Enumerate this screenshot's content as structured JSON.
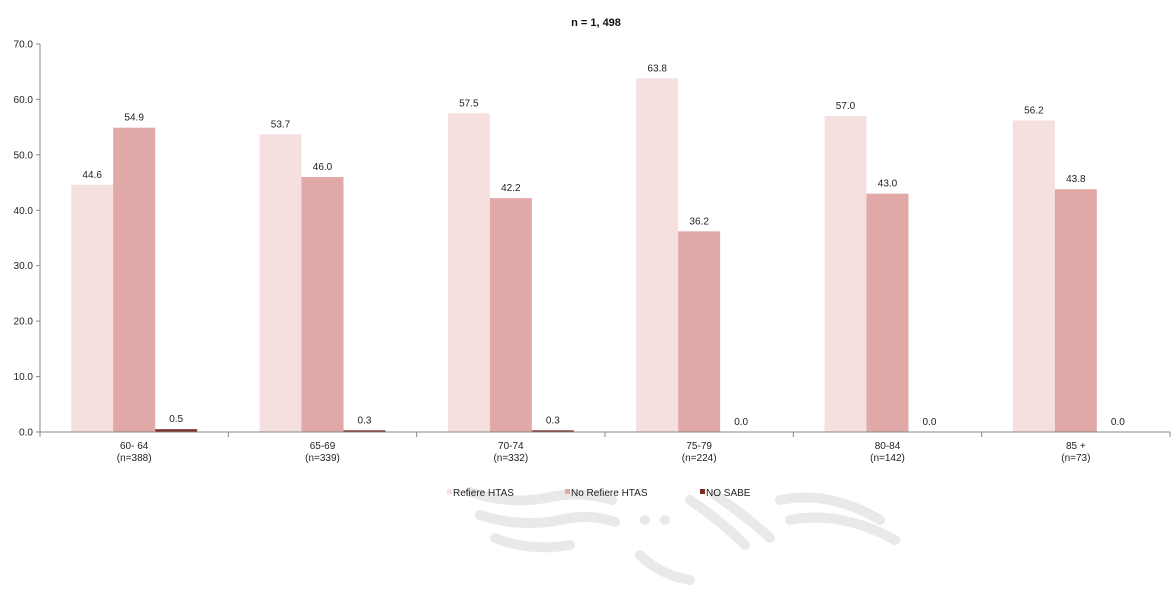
{
  "chart_data": {
    "type": "bar",
    "title": "n = 1, 498",
    "xlabel": "",
    "ylabel": "",
    "ylim": [
      0,
      70
    ],
    "yticks": [
      "0.0",
      "10.0",
      "20.0",
      "30.0",
      "40.0",
      "50.0",
      "60.0",
      "70.0"
    ],
    "categories": [
      [
        "60- 64",
        "(n=388)"
      ],
      [
        "65-69",
        "(n=339)"
      ],
      [
        "70-74",
        "(n=332)"
      ],
      [
        "75-79",
        "(n=224)"
      ],
      [
        "80-84",
        "(n=142)"
      ],
      [
        "85 +",
        "(n=73)"
      ]
    ],
    "series": [
      {
        "name": "Refiere HTAS",
        "color": "#f5e0df",
        "values": [
          44.6,
          53.7,
          57.5,
          63.8,
          57.0,
          56.2
        ],
        "labels": [
          "44.6",
          "53.7",
          "57.5",
          "63.8",
          "57.0",
          "56.2"
        ]
      },
      {
        "name": "No  Refiere HTAS",
        "color": "#e0a8a6",
        "values": [
          54.9,
          46.0,
          42.2,
          36.2,
          43.0,
          43.8
        ],
        "labels": [
          "54.9",
          "46.0",
          "42.2",
          "36.2",
          "43.0",
          "43.8"
        ]
      },
      {
        "name": "NO SABE",
        "color": "#7b2a24",
        "values": [
          0.5,
          0.3,
          0.3,
          0.0,
          0.0,
          0.0
        ],
        "labels": [
          "0.5",
          "0.3",
          "0.3",
          "0.0",
          "0.0",
          "0.0"
        ]
      }
    ],
    "legend_position": "bottom",
    "grid": false
  }
}
